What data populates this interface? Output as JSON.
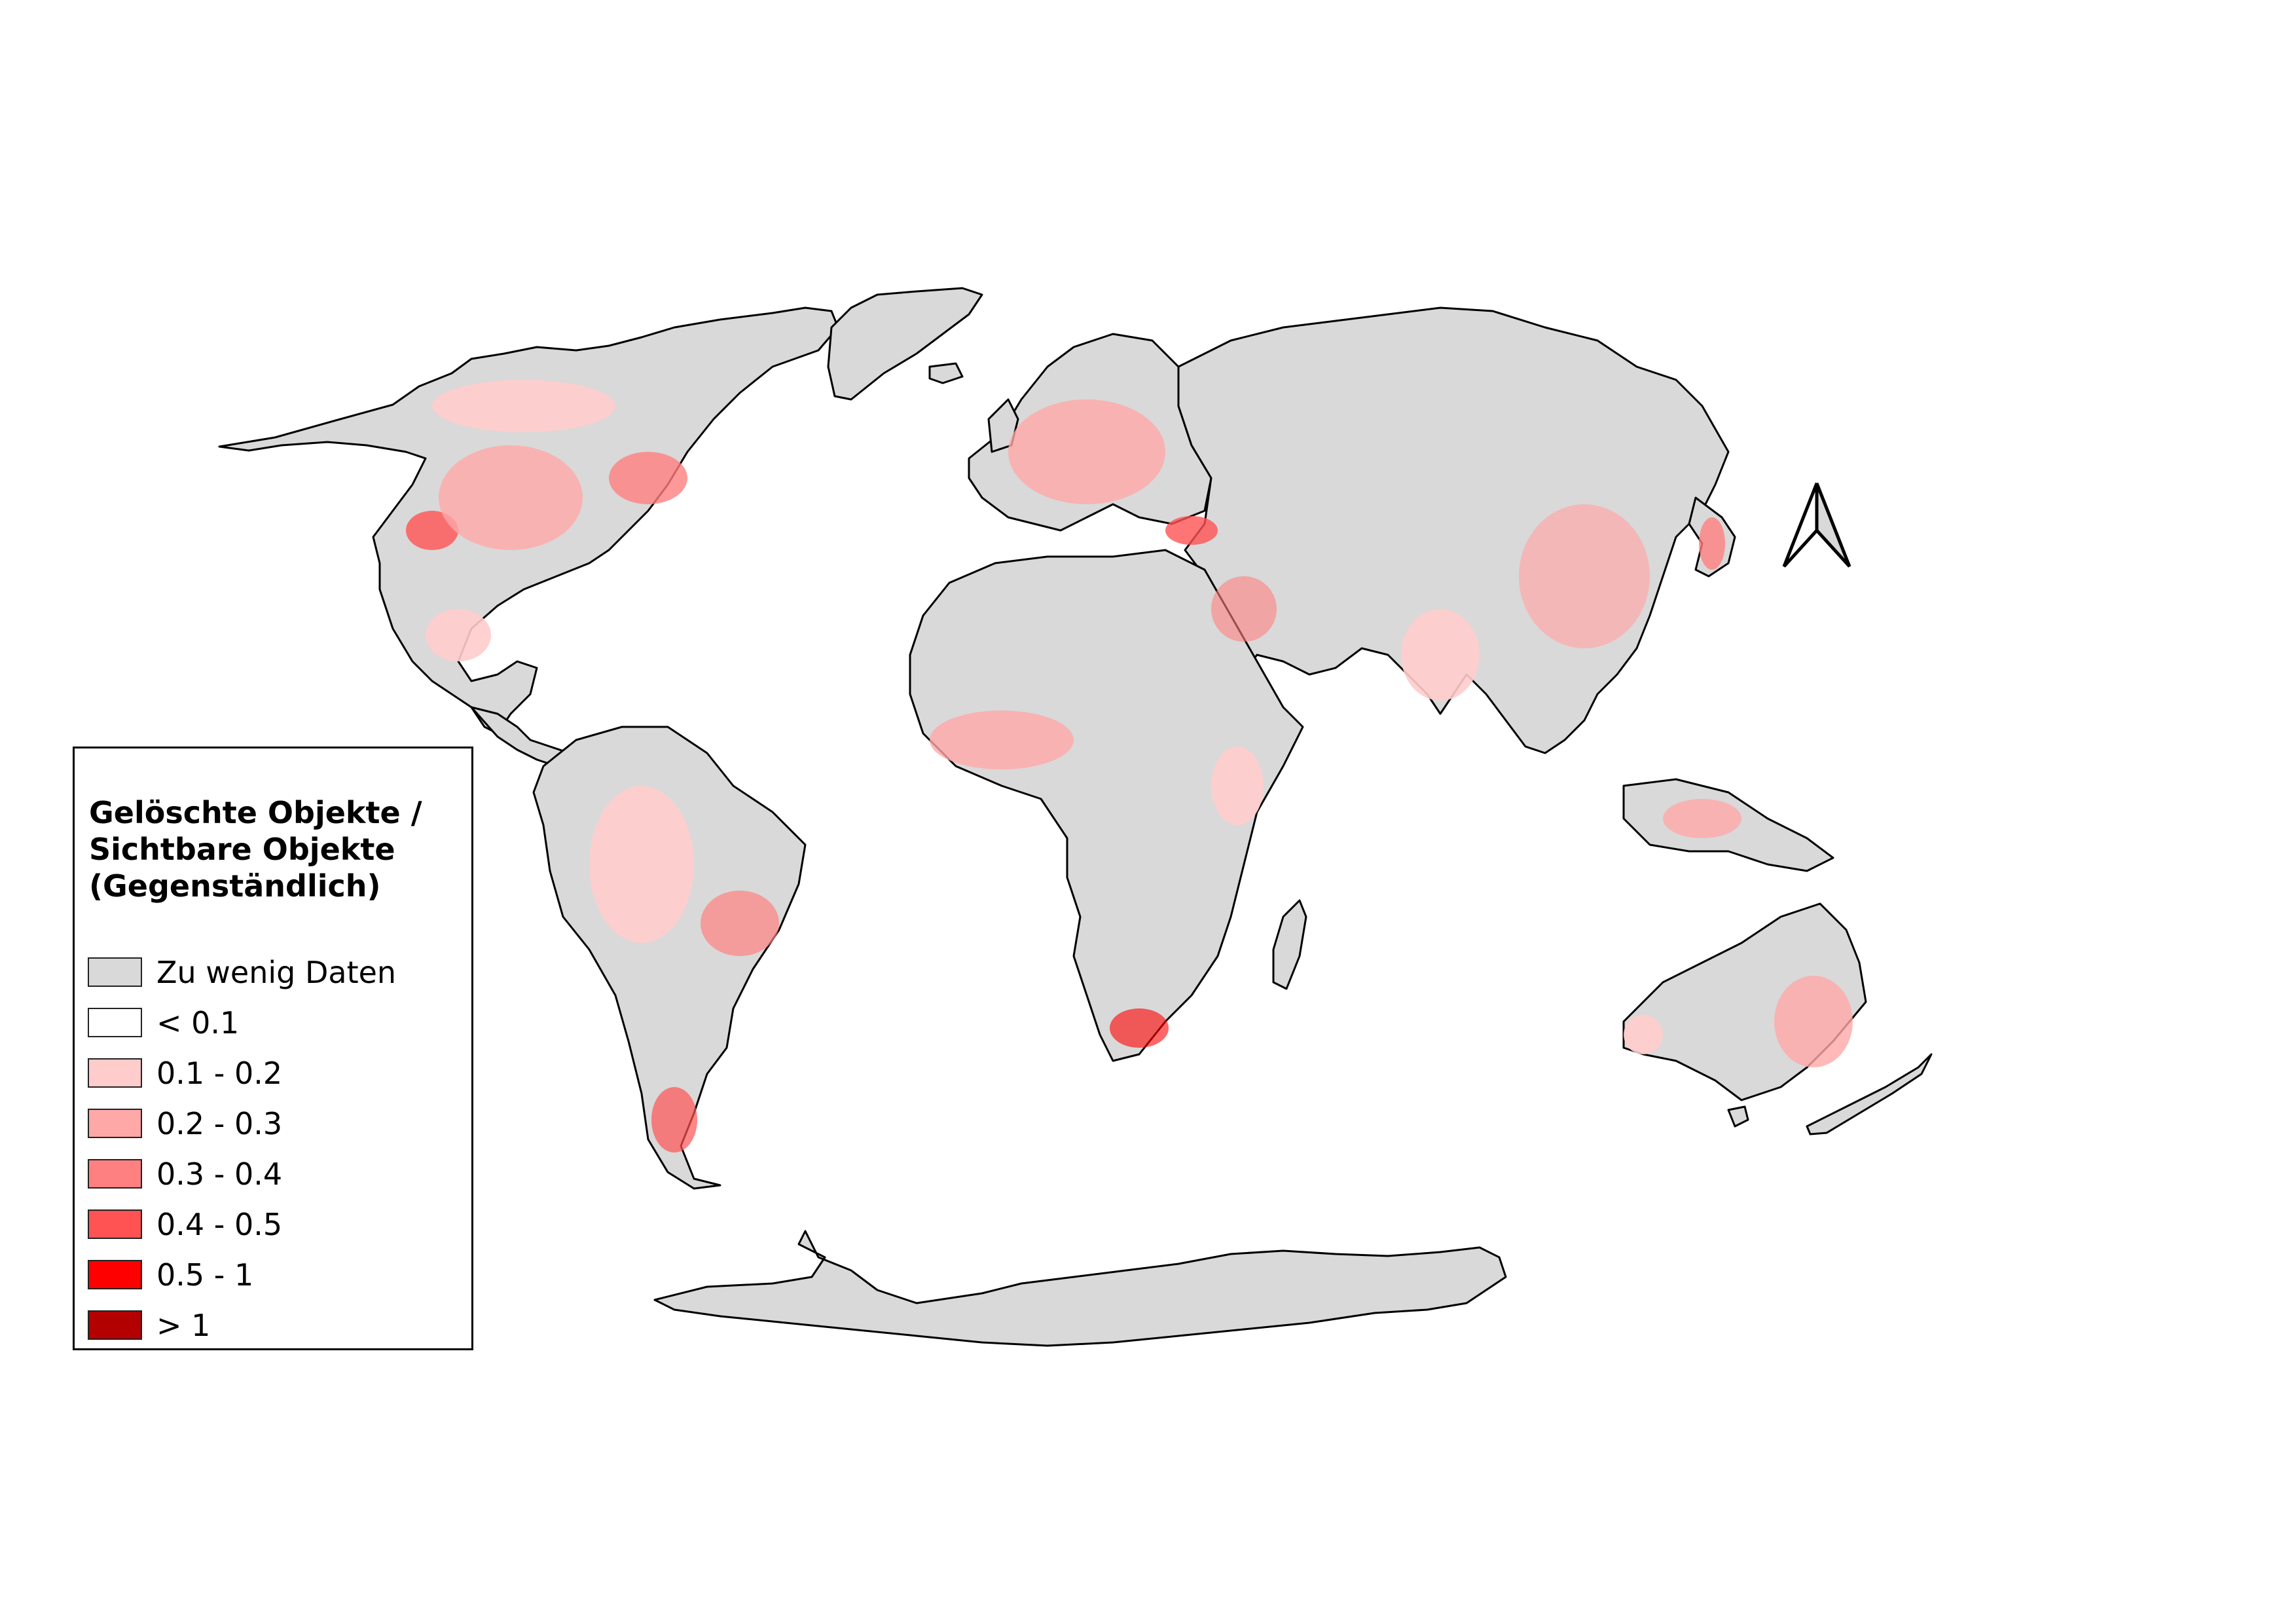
{
  "legend": {
    "title_lines": [
      "Gelöschte Objekte /",
      "Sichtbare Objekte",
      "(Gegenständlich)"
    ],
    "items": [
      {
        "label": "Zu wenig Daten",
        "color": "#d9d9d9"
      },
      {
        "label": "< 0.1",
        "color": "#ffffff"
      },
      {
        "label": "0.1 - 0.2",
        "color": "#ffcccc"
      },
      {
        "label": "0.2 - 0.3",
        "color": "#ffa8a8"
      },
      {
        "label": "0.3 - 0.4",
        "color": "#ff8080"
      },
      {
        "label": "0.4 - 0.5",
        "color": "#ff5252"
      },
      {
        "label": "0.5 - 1",
        "color": "#ff0000"
      },
      {
        "label": "> 1",
        "color": "#b30000"
      }
    ]
  },
  "map": {
    "land_nodata_color": "#d9d9d9",
    "outline_color": "#000000",
    "north_arrow_icon": "north-arrow-icon"
  }
}
